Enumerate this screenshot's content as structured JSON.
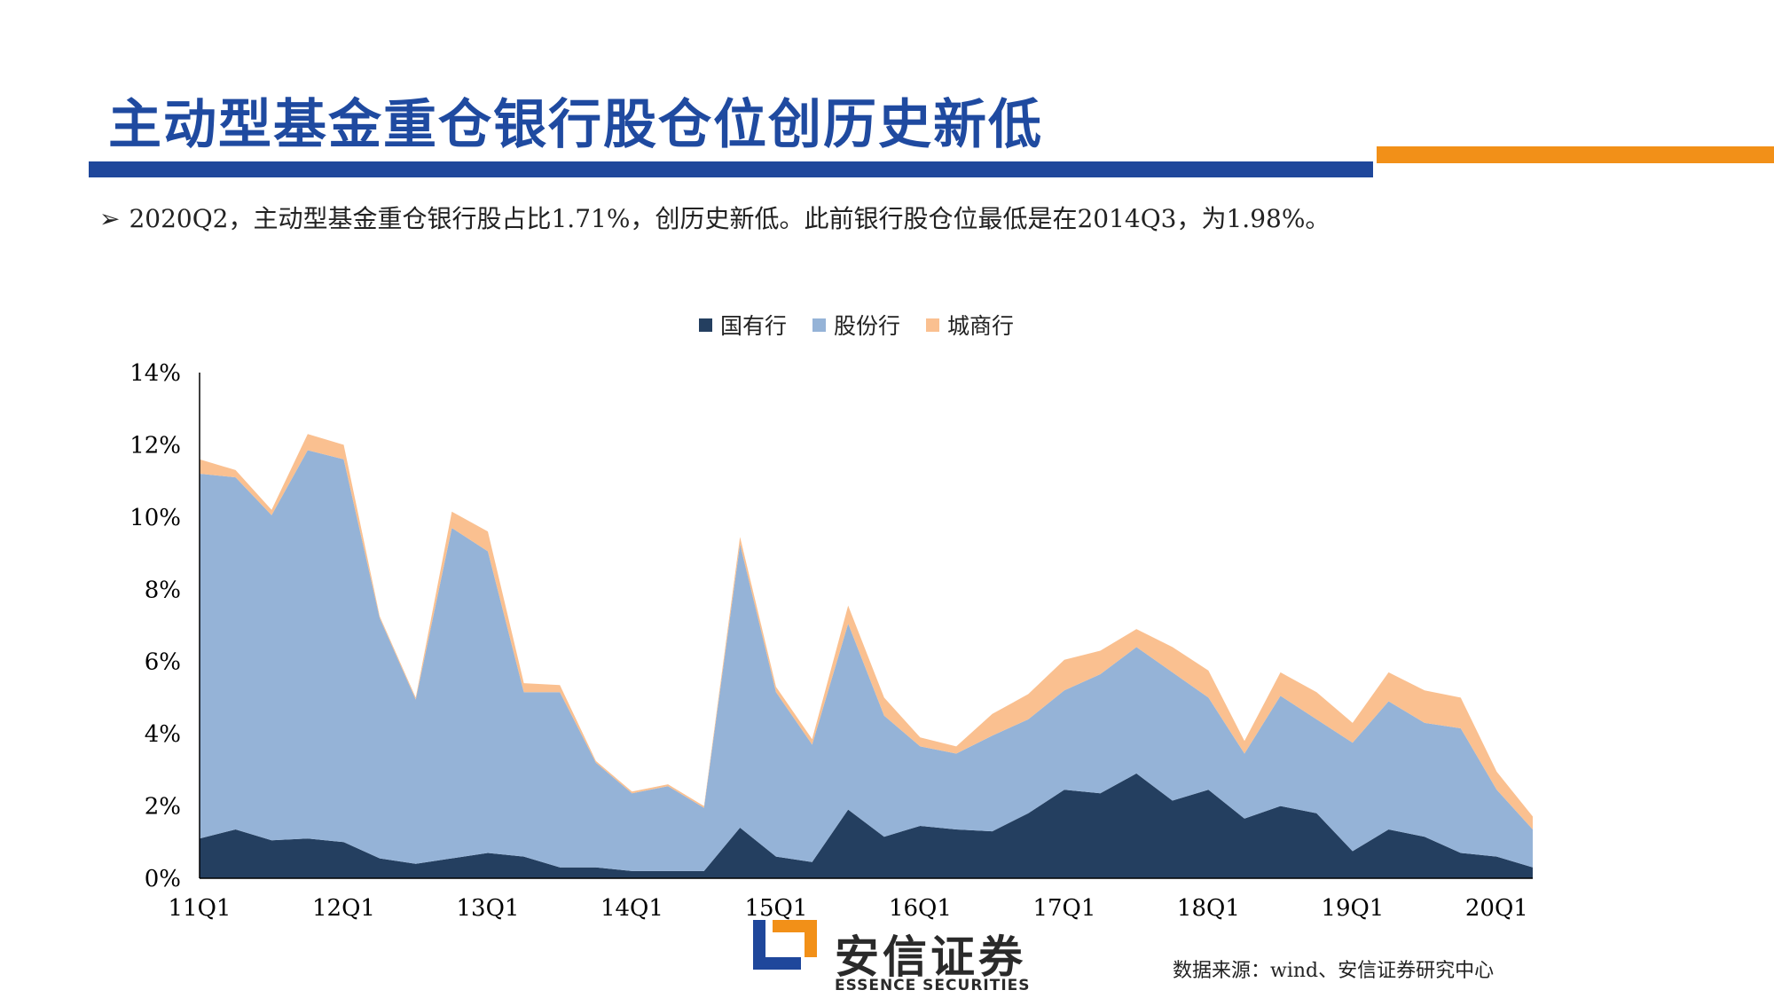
{
  "page": {
    "title": "主动型基金重仓银行股仓位创历史新低",
    "bullet": "2020Q2，主动型基金重仓银行股占比1.71%，创历史新低。此前银行股仓位最低是在2014Q3，为1.98%。",
    "bullet_marker": "➢",
    "source": "数据来源：wind、安信证券研究中心",
    "logo_cn": "安信证券",
    "logo_en": "ESSENCE SECURITIES"
  },
  "colors": {
    "title": "#1f4aa0",
    "rule_blue": "#1f479b",
    "rule_orange": "#f29018",
    "logo_blue": "#1f479b",
    "logo_orange": "#f29018"
  },
  "chart_data": {
    "type": "area",
    "stacked": true,
    "legend_position": "top-center",
    "grid": false,
    "ylim": [
      0,
      14
    ],
    "yticks": [
      "0%",
      "2%",
      "4%",
      "6%",
      "8%",
      "10%",
      "12%",
      "14%"
    ],
    "x": [
      "11Q1",
      "11Q2",
      "11Q3",
      "11Q4",
      "12Q1",
      "12Q2",
      "12Q3",
      "12Q4",
      "13Q1",
      "13Q2",
      "13Q3",
      "13Q4",
      "14Q1",
      "14Q2",
      "14Q3",
      "14Q4",
      "15Q1",
      "15Q2",
      "15Q3",
      "15Q4",
      "16Q1",
      "16Q2",
      "16Q3",
      "16Q4",
      "17Q1",
      "17Q2",
      "17Q3",
      "17Q4",
      "18Q1",
      "18Q2",
      "18Q3",
      "18Q4",
      "19Q1",
      "19Q2",
      "19Q3",
      "19Q4",
      "20Q1",
      "20Q2"
    ],
    "xtick_labels": [
      "11Q1",
      "12Q1",
      "13Q1",
      "14Q1",
      "15Q1",
      "16Q1",
      "17Q1",
      "18Q1",
      "19Q1",
      "20Q1"
    ],
    "series": [
      {
        "name": "国有行",
        "color": "#243f60",
        "values": [
          1.1,
          1.35,
          1.05,
          1.1,
          1.0,
          0.55,
          0.4,
          0.55,
          0.7,
          0.6,
          0.3,
          0.3,
          0.2,
          0.2,
          0.2,
          1.4,
          0.6,
          0.45,
          1.9,
          1.15,
          1.45,
          1.35,
          1.3,
          1.8,
          2.45,
          2.35,
          2.9,
          2.15,
          2.45,
          1.65,
          2.0,
          1.8,
          0.75,
          1.35,
          1.15,
          0.7,
          0.6,
          0.3
        ]
      },
      {
        "name": "股份行",
        "color": "#95b3d7",
        "values": [
          10.1,
          9.75,
          9.0,
          10.75,
          10.6,
          6.65,
          4.55,
          9.15,
          8.35,
          4.55,
          4.85,
          2.9,
          2.15,
          2.35,
          1.75,
          7.85,
          4.55,
          3.25,
          5.15,
          3.35,
          2.2,
          2.1,
          2.65,
          2.6,
          2.75,
          3.3,
          3.5,
          3.55,
          2.55,
          1.8,
          3.05,
          2.6,
          3.0,
          3.55,
          3.15,
          3.45,
          1.85,
          1.05
        ]
      },
      {
        "name": "城商行",
        "color": "#fac090",
        "values": [
          0.4,
          0.2,
          0.15,
          0.45,
          0.4,
          0.05,
          0.05,
          0.45,
          0.55,
          0.25,
          0.2,
          0.05,
          0.05,
          0.05,
          0.05,
          0.2,
          0.15,
          0.15,
          0.5,
          0.5,
          0.25,
          0.2,
          0.6,
          0.7,
          0.85,
          0.65,
          0.5,
          0.7,
          0.75,
          0.35,
          0.65,
          0.75,
          0.55,
          0.8,
          0.9,
          0.85,
          0.5,
          0.36
        ]
      }
    ]
  }
}
